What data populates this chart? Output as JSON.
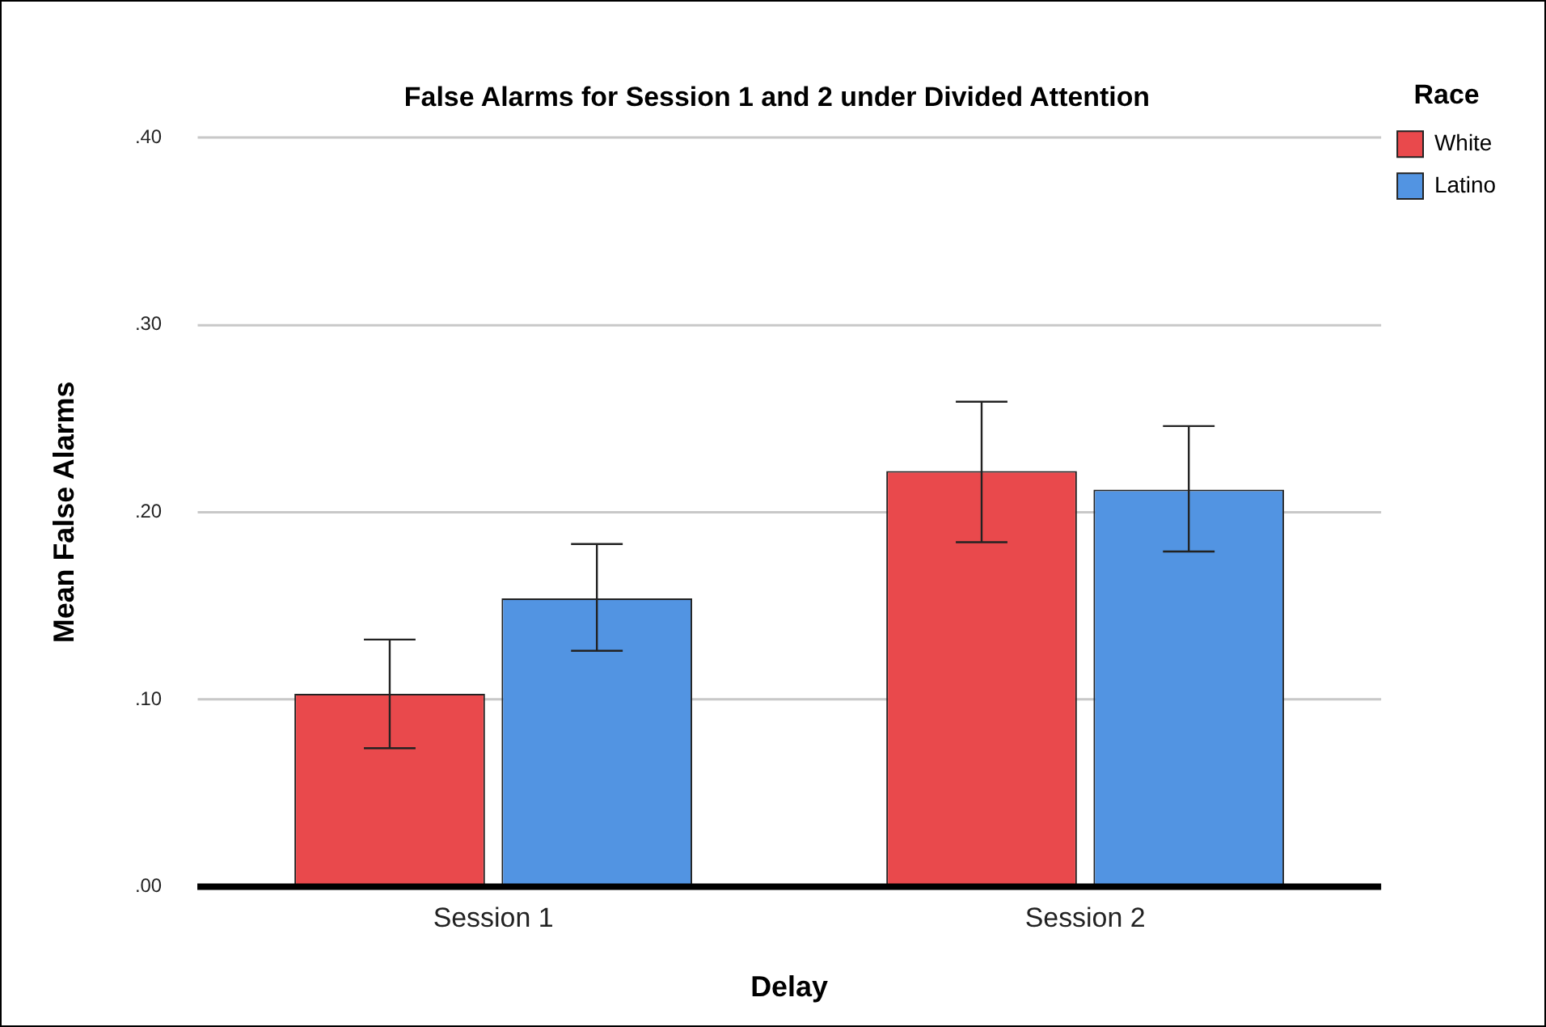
{
  "chart_data": {
    "type": "bar",
    "title": "False Alarms for Session 1 and 2 under Divided Attention",
    "xlabel": "Delay",
    "ylabel": "Mean False Alarms",
    "legend_title": "Race",
    "categories": [
      "Session 1",
      "Session 2"
    ],
    "series": [
      {
        "name": "White",
        "color": "#e9494c",
        "values": [
          0.103,
          0.222
        ],
        "errors": [
          [
            0.074,
            0.132
          ],
          [
            0.184,
            0.259
          ]
        ]
      },
      {
        "name": "Latino",
        "color": "#5294e2",
        "values": [
          0.154,
          0.212
        ],
        "errors": [
          [
            0.126,
            0.183
          ],
          [
            0.179,
            0.246
          ]
        ]
      }
    ],
    "ylim": [
      0,
      0.4
    ],
    "yticks": [
      {
        "value": 0,
        "label": ".00"
      },
      {
        "value": 0.1,
        "label": ".10"
      },
      {
        "value": 0.2,
        "label": ".20"
      },
      {
        "value": 0.3,
        "label": ".30"
      },
      {
        "value": 0.4,
        "label": ".40"
      }
    ],
    "grid": "y",
    "legend": "top right"
  }
}
